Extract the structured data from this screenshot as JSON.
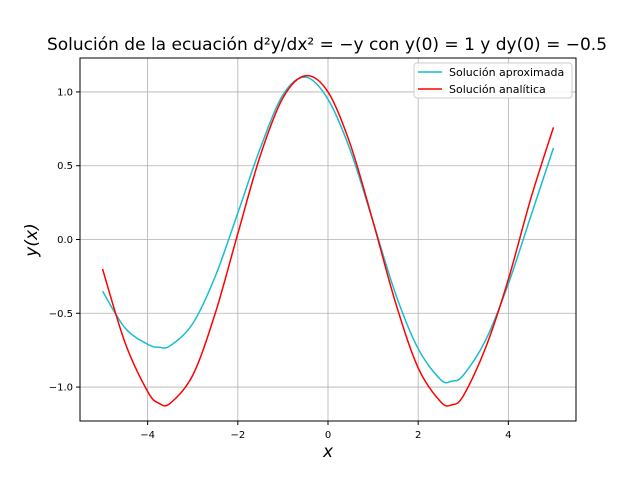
{
  "chart_data": {
    "type": "line",
    "title": "Solución de la ecuación d²y/dx² = −y con y(0) = 1 y dy(0) = −0.5",
    "xlabel": "x",
    "ylabel": "y(x)",
    "xlim": [
      -5.5,
      5.5
    ],
    "ylim": [
      -1.23,
      1.23
    ],
    "xticks": [
      -4,
      -2,
      0,
      2,
      4
    ],
    "xtick_labels": [
      "−4",
      "−2",
      "0",
      "2",
      "4"
    ],
    "yticks": [
      -1.0,
      -0.5,
      0.0,
      0.5,
      1.0
    ],
    "ytick_labels": [
      "−1.0",
      "−0.5",
      "0.0",
      "0.5",
      "1.0"
    ],
    "grid": true,
    "legend_position": "top-right",
    "series": [
      {
        "name": "Solución aproximada",
        "color": "#17becf",
        "x": [
          -5.0,
          -4.5,
          -4.0,
          -3.75,
          -3.5,
          -3.0,
          -2.5,
          -2.0,
          -1.5,
          -1.0,
          -0.5,
          0.0,
          0.5,
          1.0,
          1.5,
          2.0,
          2.5,
          2.75,
          3.0,
          3.5,
          4.0,
          4.5,
          5.0
        ],
        "values": [
          -0.35,
          -0.6,
          -0.71,
          -0.73,
          -0.72,
          -0.57,
          -0.25,
          0.18,
          0.62,
          0.98,
          1.1,
          0.95,
          0.6,
          0.12,
          -0.37,
          -0.74,
          -0.95,
          -0.96,
          -0.92,
          -0.68,
          -0.3,
          0.16,
          0.62
        ]
      },
      {
        "name": "Solución analítica",
        "color": "#ff0000",
        "x": [
          -5.0,
          -4.5,
          -4.0,
          -3.75,
          -3.5,
          -3.0,
          -2.5,
          -2.0,
          -1.5,
          -1.0,
          -0.5,
          0.0,
          0.5,
          1.0,
          1.5,
          2.0,
          2.5,
          2.75,
          3.0,
          3.5,
          4.0,
          4.5,
          5.0
        ],
        "values": [
          -0.2,
          -0.7,
          -1.03,
          -1.11,
          -1.11,
          -0.92,
          -0.5,
          0.04,
          0.57,
          0.96,
          1.11,
          1.0,
          0.64,
          0.12,
          -0.43,
          -0.87,
          -1.1,
          -1.12,
          -1.06,
          -0.73,
          -0.27,
          0.28,
          0.76
        ]
      }
    ]
  }
}
